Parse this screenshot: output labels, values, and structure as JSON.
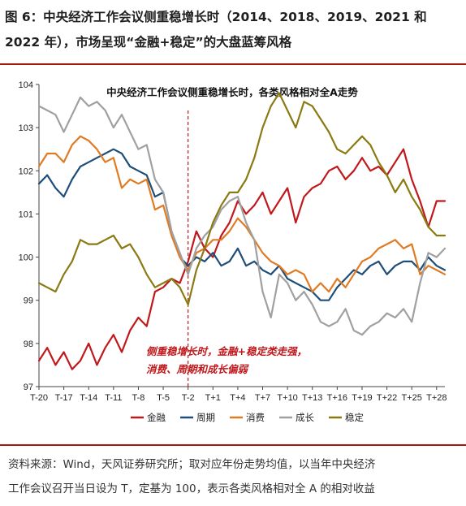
{
  "figure": {
    "title": "图 6：中央经济工作会议侧重稳增长时（2014、2018、2019、2021 和 2022 年），市场呈现“金融+稳定”的大盘蓝筹风格",
    "source_line1": "资料来源：Wind，天风证券研究所；取对应年份走势均值，以当年中央经济",
    "source_line2": "工作会议召开当日设为 T，定基为 100，表示各类风格相对全 A 的相对收益"
  },
  "chart_data": {
    "type": "line",
    "title": "中央经济工作会议侧重稳增长时，各类风格相对全A走势",
    "annotation_line1": "侧重稳增长时，金融+稳定类走强，",
    "annotation_line2": "消费、周期和成长偏弱",
    "x": [
      -20,
      -19,
      -18,
      -17,
      -16,
      -15,
      -14,
      -13,
      -12,
      -11,
      -10,
      -9,
      -8,
      -7,
      -6,
      -5,
      -4,
      -3,
      -2,
      -1,
      0,
      1,
      2,
      3,
      4,
      5,
      6,
      7,
      8,
      9,
      10,
      11,
      12,
      13,
      14,
      15,
      16,
      17,
      18,
      19,
      20,
      21,
      22,
      23,
      24,
      25,
      26,
      27,
      28,
      29
    ],
    "tick_labels": [
      "T-20",
      "T-17",
      "T-14",
      "T-11",
      "T-8",
      "T-5",
      "T-2",
      "T+1",
      "T+4",
      "T+7",
      "T+10",
      "T+13",
      "T+16",
      "T+19",
      "T+22",
      "T+25",
      "T+28"
    ],
    "tick_positions": [
      -20,
      -17,
      -14,
      -11,
      -8,
      -5,
      -2,
      1,
      4,
      7,
      10,
      13,
      16,
      19,
      22,
      25,
      28
    ],
    "ylim": [
      97,
      104
    ],
    "yticks": [
      97,
      98,
      99,
      100,
      101,
      102,
      103,
      104
    ],
    "vline_x": -2,
    "grid": false,
    "legend_position": "bottom",
    "series": [
      {
        "name": "金融",
        "color": "#c0181b",
        "values": [
          97.6,
          97.9,
          97.5,
          97.8,
          97.4,
          97.6,
          98.0,
          97.5,
          97.9,
          98.2,
          97.8,
          98.3,
          98.6,
          98.4,
          99.2,
          99.3,
          99.5,
          99.4,
          99.9,
          100.6,
          100.2,
          100.0,
          100.5,
          100.8,
          101.3,
          101.0,
          101.2,
          101.5,
          101.0,
          101.3,
          101.6,
          100.8,
          101.4,
          101.6,
          101.7,
          102.0,
          102.1,
          101.8,
          102.0,
          102.3,
          102.0,
          102.1,
          101.9,
          102.2,
          102.5,
          101.8,
          101.3,
          100.7,
          101.3,
          101.3
        ]
      },
      {
        "name": "周期",
        "color": "#1f4e79",
        "values": [
          101.7,
          101.9,
          101.6,
          101.4,
          101.8,
          102.1,
          102.2,
          102.3,
          102.4,
          102.5,
          102.4,
          102.1,
          102.0,
          101.9,
          101.4,
          101.5,
          100.6,
          100.0,
          99.8,
          100.0,
          99.9,
          100.1,
          99.8,
          99.9,
          100.2,
          99.8,
          99.9,
          99.7,
          99.6,
          99.8,
          99.5,
          99.4,
          99.3,
          99.2,
          99.0,
          99.0,
          99.3,
          99.5,
          99.7,
          99.6,
          99.8,
          99.9,
          99.6,
          99.8,
          99.9,
          99.9,
          99.7,
          100.0,
          99.8,
          99.7
        ]
      },
      {
        "name": "消费",
        "color": "#e07b24",
        "values": [
          102.1,
          102.4,
          102.4,
          102.2,
          102.6,
          102.8,
          102.7,
          102.5,
          102.2,
          102.3,
          101.6,
          101.8,
          101.7,
          101.8,
          101.1,
          101.2,
          100.5,
          100.0,
          99.7,
          100.1,
          100.2,
          100.4,
          100.4,
          100.6,
          100.9,
          100.7,
          100.4,
          100.1,
          99.9,
          99.8,
          99.6,
          99.7,
          99.6,
          99.2,
          99.4,
          99.2,
          99.5,
          99.3,
          99.6,
          99.9,
          100.0,
          100.2,
          100.3,
          100.4,
          100.2,
          100.3,
          99.6,
          99.8,
          99.7,
          99.6
        ]
      },
      {
        "name": "成长",
        "color": "#a0a0a0",
        "values": [
          103.5,
          103.4,
          103.3,
          102.9,
          103.3,
          103.7,
          103.5,
          103.6,
          103.4,
          103.0,
          103.3,
          102.9,
          102.5,
          102.6,
          101.8,
          101.5,
          100.6,
          100.1,
          99.6,
          100.2,
          100.5,
          100.7,
          101.1,
          101.3,
          101.4,
          100.8,
          100.4,
          99.2,
          98.6,
          99.6,
          99.4,
          99.0,
          99.2,
          98.9,
          98.5,
          98.4,
          98.5,
          98.8,
          98.3,
          98.2,
          98.4,
          98.5,
          98.7,
          98.6,
          98.8,
          98.5,
          99.4,
          100.1,
          100.0,
          100.2
        ]
      },
      {
        "name": "稳定",
        "color": "#8a7a12",
        "values": [
          99.4,
          99.3,
          99.2,
          99.6,
          99.9,
          100.4,
          100.3,
          100.3,
          100.4,
          100.5,
          100.2,
          100.3,
          100.0,
          99.6,
          99.3,
          99.4,
          99.5,
          99.3,
          98.9,
          99.7,
          100.2,
          100.8,
          101.2,
          101.5,
          101.5,
          101.8,
          102.3,
          103.0,
          103.5,
          103.8,
          103.4,
          103.0,
          103.6,
          103.5,
          103.2,
          102.9,
          102.5,
          102.4,
          102.6,
          102.8,
          102.6,
          102.2,
          101.9,
          101.5,
          101.8,
          101.4,
          101.1,
          100.7,
          100.5,
          100.5
        ]
      }
    ]
  }
}
